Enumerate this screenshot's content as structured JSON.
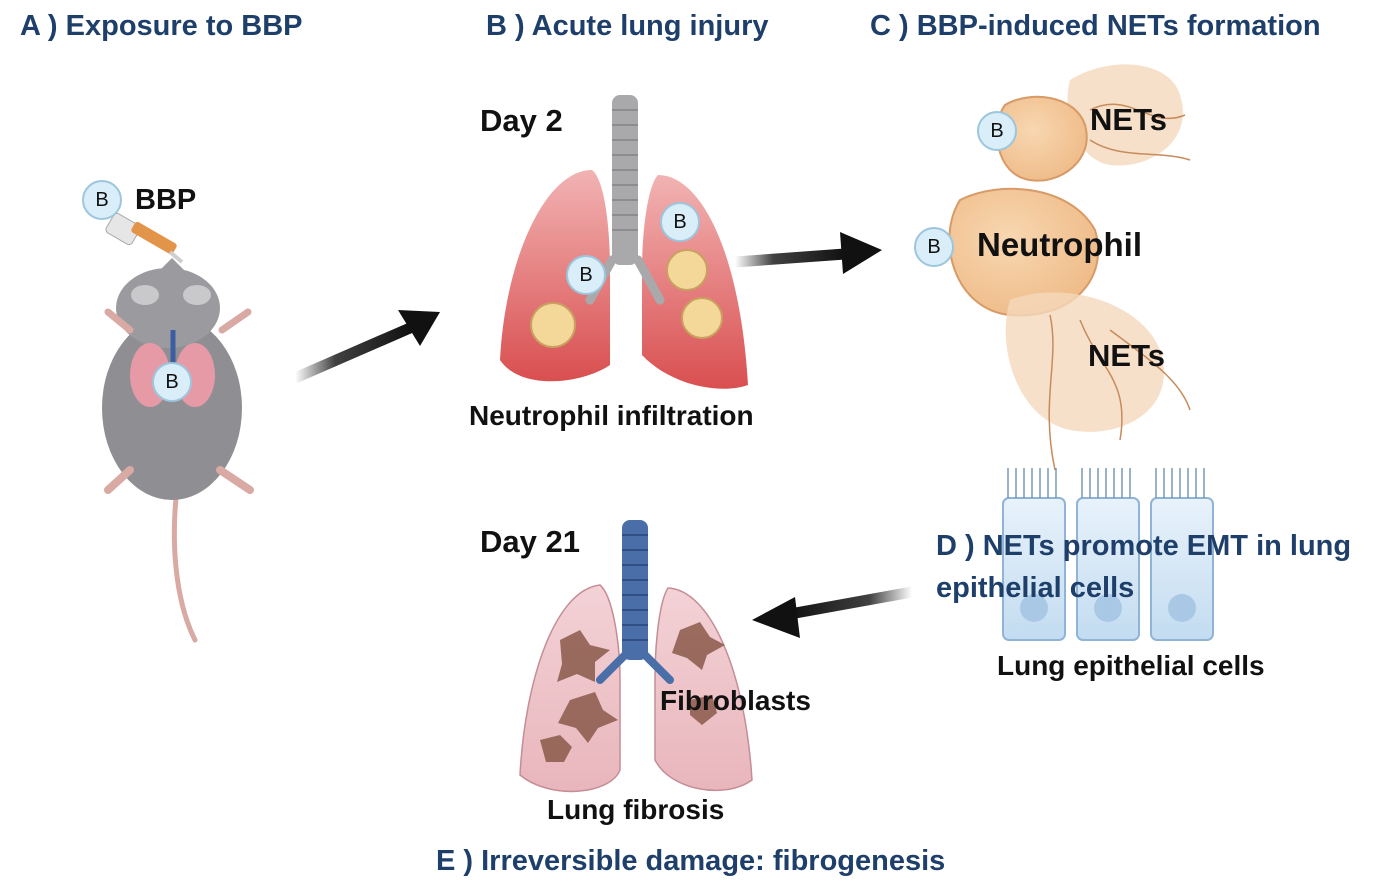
{
  "headings": {
    "a": "A ) Exposure to BBP",
    "b": "B ) Acute lung injury",
    "c": "C ) BBP-induced NETs formation",
    "d_line1": "D ) NETs promote EMT in lung",
    "d_line2": "epithelial cells",
    "e": "E ) Irreversible damage: fibrogenesis"
  },
  "labels": {
    "bbp": "BBP",
    "day2": "Day 2",
    "day21": "Day 21",
    "neutrophil_infiltration": "Neutrophil infiltration",
    "nets_top": "NETs",
    "nets_bottom": "NETs",
    "neutrophil": "Neutrophil",
    "lung_epithelial_cells": "Lung epithelial cells",
    "fibroblasts": "Fibroblasts",
    "lung_fibrosis": "Lung fibrosis",
    "b_marker": "B"
  },
  "colors": {
    "heading": "#1f3f6b",
    "lung_red": "#e06a6a",
    "lung_pink": "#e9a9b0",
    "trachea_blue": "#4a6fa8",
    "neutrophil": "#f1c291",
    "epithelium": "#cfe3f5",
    "marker": "#d9eef8"
  }
}
